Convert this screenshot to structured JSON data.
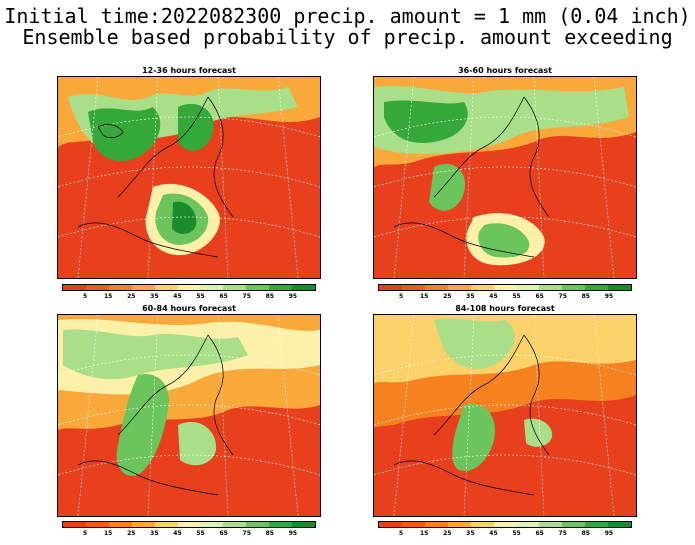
{
  "header": {
    "line1": "Initial time:2022082300 precip. amount = 1 mm (0.04 inch)",
    "line2": "Ensemble based probability of precip. amount exceeding"
  },
  "panels": [
    {
      "title": "12-36 hours forecast"
    },
    {
      "title": "36-60 hours forecast"
    },
    {
      "title": "60-84 hours forecast"
    },
    {
      "title": "84-108 hours forecast"
    }
  ],
  "colorbar": {
    "labels": [
      "5",
      "15",
      "25",
      "35",
      "45",
      "55",
      "65",
      "75",
      "85",
      "95"
    ],
    "colors": [
      "#e8401c",
      "#f05a1e",
      "#f5821f",
      "#f9a83a",
      "#fbd26a",
      "#fdf0a8",
      "#dcf2b0",
      "#a8df88",
      "#6cc55c",
      "#35a83a",
      "#198c2c"
    ]
  },
  "colors": {
    "low_probability": "#e8401c",
    "high_probability": "#198c2c",
    "coastline": "#000000",
    "grid": "#ffffff"
  }
}
